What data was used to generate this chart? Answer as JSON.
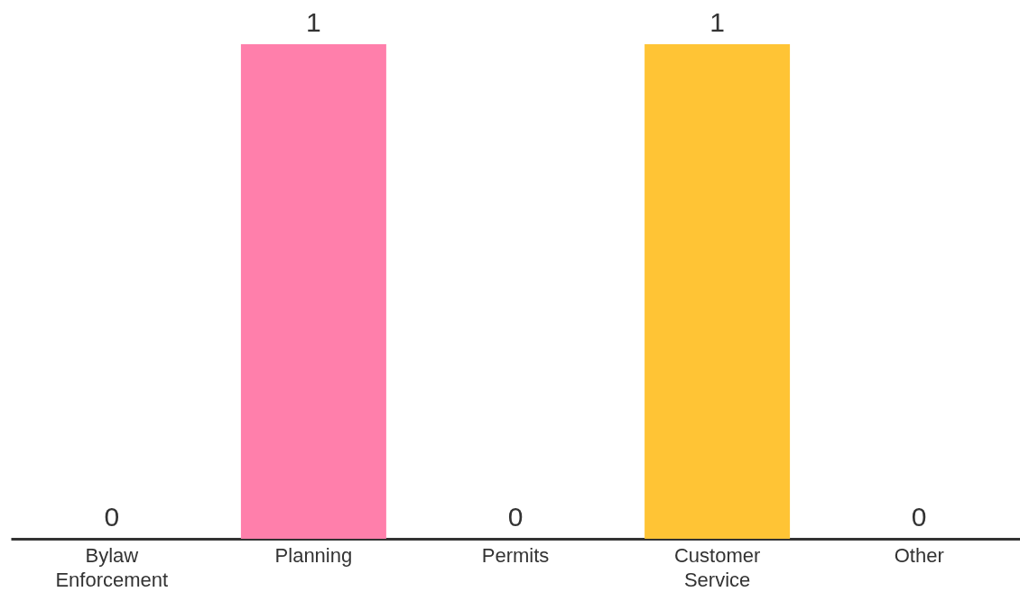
{
  "chart_data": {
    "type": "bar",
    "categories": [
      "Bylaw Enforcement",
      "Planning",
      "Permits",
      "Customer Service",
      "Other"
    ],
    "values": [
      0,
      1,
      0,
      1,
      0
    ],
    "colors": [
      "#4f9fe0",
      "#ff7fab",
      "#5ec29a",
      "#ffc435",
      "#9a7fd1"
    ],
    "data_labels": true,
    "grid": false
  }
}
